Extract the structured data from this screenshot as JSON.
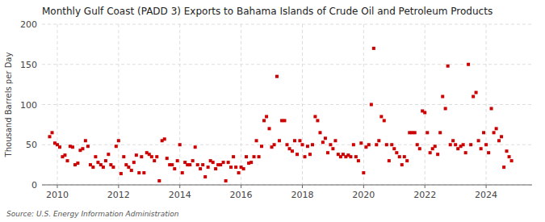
{
  "chart_data": {
    "type": "scatter",
    "title": "Monthly Gulf Coast (PADD 3) Exports to Bahama Islands of Crude Oil and Petroleum Products",
    "y_label": "Thousand Barrels per Day",
    "annotations": [
      "Source: U.S. Energy Information Administration"
    ],
    "color": "#cc0000",
    "marker": "square",
    "grid": true,
    "xlim": [
      2009.5,
      2025.5
    ],
    "xticks": [
      2010,
      2012,
      2014,
      2016,
      2018,
      2020,
      2022,
      2024
    ],
    "ylim": [
      0,
      200
    ],
    "yticks": [
      0,
      50,
      100,
      150,
      200
    ],
    "x": [
      2009.75,
      2009.83,
      2009.92,
      2010.0,
      2010.08,
      2010.17,
      2010.25,
      2010.33,
      2010.42,
      2010.5,
      2010.58,
      2010.67,
      2010.75,
      2010.83,
      2010.92,
      2011.0,
      2011.08,
      2011.17,
      2011.25,
      2011.33,
      2011.42,
      2011.5,
      2011.58,
      2011.67,
      2011.75,
      2011.83,
      2011.92,
      2012.0,
      2012.08,
      2012.17,
      2012.25,
      2012.33,
      2012.42,
      2012.5,
      2012.58,
      2012.67,
      2012.75,
      2012.83,
      2012.92,
      2013.0,
      2013.08,
      2013.17,
      2013.25,
      2013.33,
      2013.42,
      2013.5,
      2013.58,
      2013.67,
      2013.75,
      2013.83,
      2013.92,
      2014.0,
      2014.08,
      2014.17,
      2014.25,
      2014.33,
      2014.42,
      2014.5,
      2014.58,
      2014.67,
      2014.75,
      2014.83,
      2014.92,
      2015.0,
      2015.08,
      2015.17,
      2015.25,
      2015.33,
      2015.42,
      2015.5,
      2015.58,
      2015.67,
      2015.75,
      2015.83,
      2015.92,
      2016.0,
      2016.08,
      2016.17,
      2016.25,
      2016.33,
      2016.42,
      2016.5,
      2016.58,
      2016.67,
      2016.75,
      2016.83,
      2016.92,
      2017.0,
      2017.08,
      2017.17,
      2017.25,
      2017.33,
      2017.42,
      2017.5,
      2017.58,
      2017.67,
      2017.75,
      2017.83,
      2017.92,
      2018.0,
      2018.08,
      2018.17,
      2018.25,
      2018.33,
      2018.42,
      2018.5,
      2018.58,
      2018.67,
      2018.75,
      2018.83,
      2018.92,
      2019.0,
      2019.08,
      2019.17,
      2019.25,
      2019.33,
      2019.42,
      2019.5,
      2019.58,
      2019.67,
      2019.75,
      2019.83,
      2019.92,
      2020.0,
      2020.08,
      2020.17,
      2020.25,
      2020.33,
      2020.42,
      2020.5,
      2020.58,
      2020.67,
      2020.75,
      2020.83,
      2020.92,
      2021.0,
      2021.08,
      2021.17,
      2021.25,
      2021.33,
      2021.42,
      2021.5,
      2021.58,
      2021.67,
      2021.75,
      2021.83,
      2021.92,
      2022.0,
      2022.08,
      2022.17,
      2022.25,
      2022.33,
      2022.42,
      2022.5,
      2022.58,
      2022.67,
      2022.75,
      2022.83,
      2022.92,
      2023.0,
      2023.08,
      2023.17,
      2023.25,
      2023.33,
      2023.42,
      2023.5,
      2023.58,
      2023.67,
      2023.75,
      2023.83,
      2023.92,
      2024.0,
      2024.08,
      2024.17,
      2024.25,
      2024.33,
      2024.42,
      2024.5,
      2024.58,
      2024.67,
      2024.75,
      2024.83
    ],
    "values": [
      60,
      65,
      52,
      50,
      47,
      35,
      37,
      30,
      48,
      47,
      25,
      27,
      43,
      45,
      55,
      48,
      25,
      22,
      35,
      28,
      25,
      22,
      30,
      38,
      25,
      22,
      48,
      55,
      14,
      35,
      25,
      22,
      18,
      28,
      37,
      15,
      35,
      15,
      40,
      38,
      35,
      30,
      35,
      5,
      55,
      57,
      33,
      25,
      25,
      20,
      30,
      50,
      15,
      28,
      25,
      25,
      30,
      47,
      25,
      20,
      25,
      10,
      22,
      30,
      28,
      20,
      25,
      25,
      28,
      5,
      28,
      22,
      35,
      22,
      15,
      22,
      20,
      35,
      27,
      28,
      35,
      55,
      35,
      48,
      80,
      85,
      70,
      47,
      50,
      135,
      55,
      80,
      80,
      50,
      45,
      42,
      55,
      38,
      55,
      50,
      35,
      48,
      38,
      50,
      85,
      80,
      65,
      53,
      58,
      40,
      50,
      45,
      55,
      38,
      35,
      38,
      35,
      37,
      35,
      50,
      35,
      30,
      52,
      15,
      47,
      50,
      100,
      170,
      50,
      55,
      85,
      80,
      50,
      30,
      50,
      45,
      40,
      35,
      25,
      35,
      30,
      65,
      65,
      65,
      50,
      45,
      92,
      90,
      65,
      40,
      45,
      48,
      38,
      65,
      110,
      95,
      148,
      50,
      55,
      50,
      45,
      48,
      50,
      40,
      150,
      50,
      110,
      115,
      55,
      45,
      65,
      50,
      40,
      95,
      65,
      70,
      55,
      60,
      22,
      42,
      35,
      30
    ]
  }
}
